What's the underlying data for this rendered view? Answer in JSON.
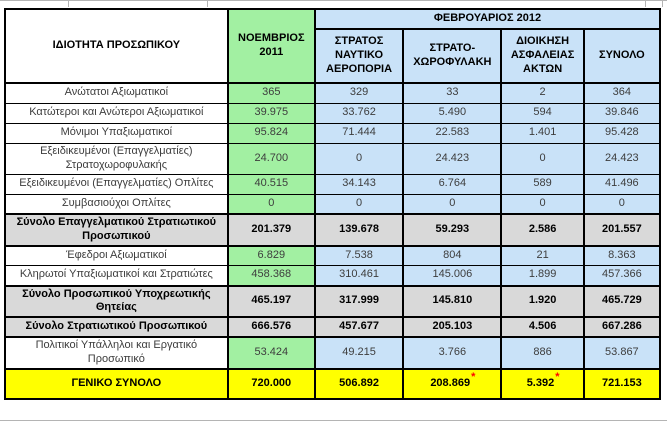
{
  "table": {
    "header": {
      "personnel_col": "ΙΔΙΟΤΗΤΑ ΠΡΟΣΩΠΙΚΟΥ",
      "november_col": "ΝΟΕΜΒΡΙΟΣ 2011",
      "february_group": "ΦΕΒΡΟΥΑΡΙΟΣ 2012",
      "february_subcols": [
        "ΣΤΡΑΤΟΣ ΝΑΥΤΙΚΟ ΑΕΡΟΠΟΡΙΑ",
        "ΣΤΡΑΤΟ-ΧΩΡΟΦΥΛΑΚΗ",
        "ΔΙΟΙΚΗΣΗ ΑΣΦΑΛΕΙΑΣ ΑΚΤΩΝ",
        "ΣΥΝΟΛΟ"
      ]
    },
    "rows": [
      {
        "label": "Ανώτατοι Αξιωματικοί",
        "values": [
          "365",
          "329",
          "33",
          "2",
          "364"
        ],
        "type": "normal"
      },
      {
        "label": "Κατώτεροι και Ανώτεροι Αξιωματικοί",
        "values": [
          "39.975",
          "33.762",
          "5.490",
          "594",
          "39.846"
        ],
        "type": "normal"
      },
      {
        "label": "Μόνιμοι Υπαξιωματικοί",
        "values": [
          "95.824",
          "71.444",
          "22.583",
          "1.401",
          "95.428"
        ],
        "type": "normal"
      },
      {
        "label": "Εξειδικευμένοι (Επαγγελματίες) Στρατοχωροφυλακής",
        "values": [
          "24.700",
          "0",
          "24.423",
          "0",
          "24.423"
        ],
        "type": "normal",
        "tall": true
      },
      {
        "label": "Εξειδικευμένοι (Επαγγελματίες) Οπλίτες",
        "values": [
          "40.515",
          "34.143",
          "6.764",
          "589",
          "41.496"
        ],
        "type": "normal"
      },
      {
        "label": "Συμβασιούχοι Οπλίτες",
        "values": [
          "0",
          "0",
          "0",
          "0",
          "0"
        ],
        "type": "normal"
      },
      {
        "label": "Σύνολο Επαγγελματικού Στρατιωτικού Προσωπικού",
        "values": [
          "201.379",
          "139.678",
          "59.293",
          "2.586",
          "201.557"
        ],
        "type": "subtotal",
        "tall": true
      },
      {
        "label": "Έφεδροι Αξιωματικοί",
        "values": [
          "6.829",
          "7.538",
          "804",
          "21",
          "8.363"
        ],
        "type": "normal"
      },
      {
        "label": "Κληρωτοί Υπαξιωματικοί και Στρατιώτες",
        "values": [
          "458.368",
          "310.461",
          "145.006",
          "1.899",
          "457.366"
        ],
        "type": "normal"
      },
      {
        "label": "Σύνολο Προσωπικού Υποχρεωτικής Θητείας",
        "values": [
          "465.197",
          "317.999",
          "145.810",
          "1.920",
          "465.729"
        ],
        "type": "subtotal",
        "tall": true
      },
      {
        "label": "Σύνολο Στρατιωτικού Προσωπικού",
        "values": [
          "666.576",
          "457.677",
          "205.103",
          "4.506",
          "667.286"
        ],
        "type": "subtotal"
      },
      {
        "label": "Πολιτικοί Υπάλληλοι και Εργατικό Προσωπικό",
        "values": [
          "53.424",
          "49.215",
          "3.766",
          "886",
          "53.867"
        ],
        "type": "normal",
        "tall": true
      },
      {
        "label": "ΓΕΝΙΚΟ ΣΥΝΟΛΟ",
        "values": [
          "720.000",
          "506.892",
          "208.869",
          "5.392",
          "721.153"
        ],
        "asterisks": [
          false,
          false,
          true,
          true,
          false
        ],
        "type": "grand"
      }
    ],
    "footnote_marker": "*"
  },
  "colors": {
    "november_fill": "#A2F0A2",
    "february_fill": "#C9E2F8",
    "subtotal_fill": "#D9D9D9",
    "grand_total_fill": "#FFFF00",
    "asterisk_color": "#FF0000"
  },
  "artifacts": {
    "top_tick_positions": [
      68,
      207,
      645,
      662
    ]
  }
}
